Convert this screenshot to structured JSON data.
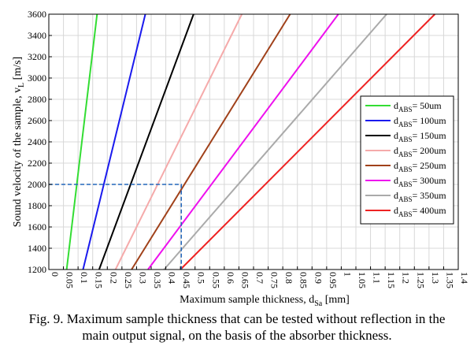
{
  "chart_data": {
    "type": "line",
    "xlabel": "Maximum sample thickness, d",
    "xlabel_sub": "Sa",
    "xlabel_unit": " [mm]",
    "ylabel": "Sound velocity of the sample, v",
    "ylabel_sub": "L",
    "ylabel_unit": " [m/s]",
    "xlim": [
      0,
      1.4
    ],
    "ylim": [
      1200,
      3600
    ],
    "x_ticks": [
      "0",
      "0.05",
      "0.1",
      "0.15",
      "0.2",
      "0.25",
      "0.3",
      "0.35",
      "0.4",
      "0.45",
      "0.5",
      "0.55",
      "0.6",
      "0.65",
      "0.7",
      "0.75",
      "0.8",
      "0.85",
      "0.9",
      "0.95",
      "1",
      "1.05",
      "1.1",
      "1.15",
      "1.2",
      "1.25",
      "1.3",
      "1.35",
      "1.4"
    ],
    "y_ticks": [
      "1200",
      "1400",
      "1600",
      "1800",
      "2000",
      "2200",
      "2400",
      "2600",
      "2800",
      "3000",
      "3200",
      "3400",
      "3600"
    ],
    "grid": true,
    "legend_position": "right",
    "series": [
      {
        "label_main": "d",
        "label_sub": "ABS",
        "label_value": "= 50um",
        "color": "#33dd33",
        "points": [
          [
            0.061,
            1200
          ],
          [
            0.165,
            3600
          ]
        ]
      },
      {
        "label_main": "d",
        "label_sub": "ABS",
        "label_value": "= 100um",
        "color": "#1a1aee",
        "points": [
          [
            0.117,
            1200
          ],
          [
            0.33,
            3600
          ]
        ]
      },
      {
        "label_main": "d",
        "label_sub": "ABS",
        "label_value": "= 150um",
        "color": "#000000",
        "points": [
          [
            0.172,
            1200
          ],
          [
            0.495,
            3600
          ]
        ]
      },
      {
        "label_main": "d",
        "label_sub": "ABS",
        "label_value": "= 200um",
        "color": "#f5aaaa",
        "points": [
          [
            0.228,
            1200
          ],
          [
            0.66,
            3600
          ]
        ]
      },
      {
        "label_main": "d",
        "label_sub": "ABS",
        "label_value": "= 250um",
        "color": "#a0411a",
        "points": [
          [
            0.283,
            1200
          ],
          [
            0.825,
            3600
          ]
        ]
      },
      {
        "label_main": "d",
        "label_sub": "ABS",
        "label_value": "= 300um",
        "color": "#ee11ee",
        "points": [
          [
            0.339,
            1200
          ],
          [
            0.99,
            3600
          ]
        ]
      },
      {
        "label_main": "d",
        "label_sub": "ABS",
        "label_value": "= 350um",
        "color": "#aaaaaa",
        "points": [
          [
            0.394,
            1200
          ],
          [
            1.155,
            3600
          ]
        ]
      },
      {
        "label_main": "d",
        "label_sub": "ABS",
        "label_value": "= 400um",
        "color": "#ee2222",
        "points": [
          [
            0.45,
            1200
          ],
          [
            1.32,
            3600
          ]
        ]
      }
    ],
    "annotation_lines": {
      "color": "#2266bb",
      "points": [
        [
          0,
          2000
        ],
        [
          0.453,
          2000
        ],
        [
          0.453,
          1200
        ]
      ]
    }
  },
  "caption": {
    "line1": "Fig. 9. Maximum sample thickness that can be tested without reflection in the",
    "line2": "main output signal, on the basis of the absorber thickness."
  }
}
